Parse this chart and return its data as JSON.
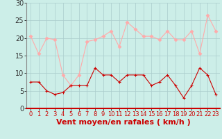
{
  "x": [
    0,
    1,
    2,
    3,
    4,
    5,
    6,
    7,
    8,
    9,
    10,
    11,
    12,
    13,
    14,
    15,
    16,
    17,
    18,
    19,
    20,
    21,
    22,
    23
  ],
  "mean_wind": [
    7.5,
    7.5,
    5,
    4,
    4.5,
    6.5,
    6.5,
    6.5,
    11.5,
    9.5,
    9.5,
    7.5,
    9.5,
    9.5,
    9.5,
    6.5,
    7.5,
    9.5,
    6.5,
    3,
    6.5,
    11.5,
    9.5,
    4
  ],
  "gust_wind": [
    20.5,
    15.5,
    20,
    19.5,
    9.5,
    6.5,
    9.5,
    19,
    19.5,
    20.5,
    22,
    17.5,
    24.5,
    22.5,
    20.5,
    20.5,
    19.5,
    22,
    19.5,
    19.5,
    22,
    15.5,
    26.5,
    22
  ],
  "bg_color": "#cceee8",
  "grid_color": "#aacccc",
  "line_color_mean": "#cc0000",
  "line_color_gust": "#ffaaaa",
  "xlabel": "Vent moyen/en rafales ( km/h )",
  "ylim": [
    0,
    30
  ],
  "xlim": [
    -0.5,
    23.5
  ],
  "yticks": [
    0,
    5,
    10,
    15,
    20,
    25,
    30
  ],
  "xticks": [
    0,
    1,
    2,
    3,
    4,
    5,
    6,
    7,
    8,
    9,
    10,
    11,
    12,
    13,
    14,
    15,
    16,
    17,
    18,
    19,
    20,
    21,
    22,
    23
  ],
  "xlabel_fontsize": 8,
  "ytick_fontsize": 7,
  "xtick_fontsize": 6
}
